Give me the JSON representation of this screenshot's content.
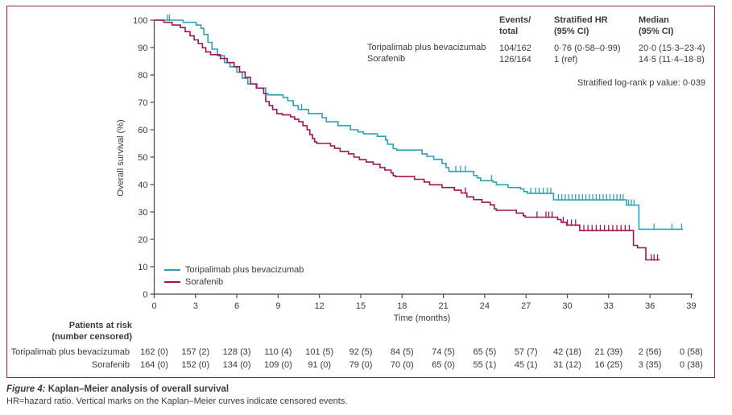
{
  "colors": {
    "teal": "#2aa2b6",
    "maroon": "#a31352",
    "border": "#a21a52",
    "text": "#3a3a40",
    "axis": "#47474b"
  },
  "stats_table": {
    "headers": [
      {
        "line1": "Events/",
        "line2": "total"
      },
      {
        "line1": "Stratified HR",
        "line2": "(95% CI)"
      },
      {
        "line1": "Median",
        "line2": "(95% CI)"
      }
    ],
    "rows": [
      {
        "name": "Toripalimab plus bevacizumab",
        "events_total": "104/162",
        "hr": "0·76 (0·58–0·99)",
        "median": "20·0 (15·3–23·4)"
      },
      {
        "name": "Sorafenib",
        "events_total": "126/164",
        "hr": "1 (ref)",
        "median": "14·5 (11·4–18·8)"
      }
    ],
    "p_value_note": "Stratified log-rank p value: 0·039"
  },
  "chart_data": {
    "type": "line",
    "subtype": "kaplan-meier-step",
    "title": "",
    "xlabel": "Time (months)",
    "ylabel": "Overall survival (%)",
    "xlim": [
      0,
      39
    ],
    "ylim": [
      0,
      100
    ],
    "xticks": [
      0,
      3,
      6,
      9,
      12,
      15,
      18,
      21,
      24,
      27,
      30,
      33,
      36,
      39
    ],
    "yticks": [
      0,
      10,
      20,
      30,
      40,
      50,
      60,
      70,
      80,
      90,
      100
    ],
    "grid": false,
    "legend_position": "inside-lower-left",
    "series": [
      {
        "name": "Toripalimab plus bevacizumab",
        "color_key": "teal",
        "steps": [
          [
            0,
            100
          ],
          [
            2.1,
            99.2
          ],
          [
            3.05,
            98.2
          ],
          [
            3.4,
            97.0
          ],
          [
            3.6,
            94.8
          ],
          [
            3.9,
            91.9
          ],
          [
            4.2,
            89.4
          ],
          [
            4.6,
            87.0
          ],
          [
            5.1,
            84.5
          ],
          [
            5.5,
            83.0
          ],
          [
            6.0,
            81.0
          ],
          [
            6.4,
            78.8
          ],
          [
            6.8,
            76.7
          ],
          [
            7.4,
            75.2
          ],
          [
            8.1,
            73.2
          ],
          [
            8.25,
            72.7
          ],
          [
            9.35,
            71.8
          ],
          [
            9.7,
            70.6
          ],
          [
            10.1,
            68.8
          ],
          [
            10.45,
            67.4
          ],
          [
            11.2,
            65.9
          ],
          [
            12.2,
            64.4
          ],
          [
            12.5,
            62.9
          ],
          [
            13.35,
            61.5
          ],
          [
            14.25,
            60.0
          ],
          [
            14.8,
            59.2
          ],
          [
            15.2,
            58.5
          ],
          [
            16.2,
            57.6
          ],
          [
            16.8,
            56.2
          ],
          [
            16.95,
            54.7
          ],
          [
            17.35,
            53.1
          ],
          [
            17.6,
            52.6
          ],
          [
            19.45,
            51.2
          ],
          [
            19.8,
            50.3
          ],
          [
            20.3,
            49.2
          ],
          [
            20.9,
            47.7
          ],
          [
            21.2,
            46.2
          ],
          [
            21.4,
            44.8
          ],
          [
            23.2,
            43.3
          ],
          [
            23.45,
            42.4
          ],
          [
            23.7,
            41.4
          ],
          [
            24.6,
            40.9
          ],
          [
            24.85,
            39.9
          ],
          [
            25.7,
            38.9
          ],
          [
            26.6,
            38.4
          ],
          [
            26.85,
            37.4
          ],
          [
            27.1,
            36.8
          ],
          [
            29.0,
            34.4
          ],
          [
            34.3,
            32.5
          ],
          [
            35.2,
            23.7
          ],
          [
            38.4,
            23.7
          ]
        ],
        "censor_months": [
          0.96,
          1.1,
          10.7,
          21.9,
          22.25,
          22.6,
          24.5,
          27.35,
          27.7,
          27.95,
          28.25,
          28.55,
          28.8,
          29.35,
          29.6,
          29.85,
          30.1,
          30.35,
          30.6,
          30.85,
          31.1,
          31.35,
          31.6,
          31.85,
          32.1,
          32.35,
          32.6,
          32.85,
          33.1,
          33.35,
          33.6,
          33.85,
          34.05,
          34.45,
          34.65,
          34.85,
          36.3,
          37.6,
          38.3
        ]
      },
      {
        "name": "Sorafenib",
        "color_key": "maroon",
        "steps": [
          [
            0,
            100
          ],
          [
            0.7,
            99.2
          ],
          [
            1.3,
            98.2
          ],
          [
            1.9,
            97.3
          ],
          [
            2.25,
            95.8
          ],
          [
            2.6,
            94.3
          ],
          [
            2.9,
            92.8
          ],
          [
            3.2,
            91.4
          ],
          [
            3.5,
            89.9
          ],
          [
            3.75,
            88.4
          ],
          [
            4.1,
            87.4
          ],
          [
            4.8,
            86.0
          ],
          [
            5.3,
            84.5
          ],
          [
            5.8,
            83.0
          ],
          [
            6.2,
            81.1
          ],
          [
            6.6,
            79.1
          ],
          [
            7.0,
            76.7
          ],
          [
            7.45,
            75.2
          ],
          [
            7.95,
            73.2
          ],
          [
            8.1,
            70.3
          ],
          [
            8.35,
            68.8
          ],
          [
            8.6,
            67.4
          ],
          [
            8.9,
            65.9
          ],
          [
            9.3,
            65.4
          ],
          [
            9.9,
            64.7
          ],
          [
            10.2,
            63.8
          ],
          [
            10.5,
            62.9
          ],
          [
            10.8,
            61.5
          ],
          [
            11.1,
            60.0
          ],
          [
            11.3,
            58.2
          ],
          [
            11.5,
            56.8
          ],
          [
            11.65,
            55.6
          ],
          [
            11.8,
            55.0
          ],
          [
            12.8,
            54.1
          ],
          [
            13.1,
            53.2
          ],
          [
            13.5,
            52.1
          ],
          [
            14.1,
            51.2
          ],
          [
            14.5,
            50.0
          ],
          [
            14.9,
            49.1
          ],
          [
            15.4,
            48.2
          ],
          [
            15.9,
            47.4
          ],
          [
            16.4,
            46.2
          ],
          [
            16.75,
            45.3
          ],
          [
            17.2,
            44.3
          ],
          [
            17.35,
            43.3
          ],
          [
            17.5,
            42.9
          ],
          [
            18.9,
            41.9
          ],
          [
            19.6,
            40.9
          ],
          [
            20.0,
            39.9
          ],
          [
            20.9,
            38.9
          ],
          [
            21.8,
            37.9
          ],
          [
            22.3,
            36.9
          ],
          [
            22.7,
            35.5
          ],
          [
            23.2,
            34.5
          ],
          [
            23.8,
            33.5
          ],
          [
            24.4,
            32.6
          ],
          [
            24.7,
            31.1
          ],
          [
            24.85,
            30.6
          ],
          [
            26.3,
            29.6
          ],
          [
            26.8,
            28.6
          ],
          [
            26.95,
            28.1
          ],
          [
            29.3,
            27.2
          ],
          [
            29.55,
            26.2
          ],
          [
            29.95,
            25.2
          ],
          [
            30.9,
            23.2
          ],
          [
            34.8,
            17.8
          ],
          [
            35.1,
            16.9
          ],
          [
            35.7,
            12.5
          ],
          [
            36.7,
            12.5
          ]
        ],
        "censor_months": [
          22.6,
          27.8,
          28.45,
          28.65,
          28.9,
          29.7,
          30.0,
          30.3,
          30.6,
          31.2,
          31.5,
          31.8,
          32.1,
          32.4,
          32.7,
          33.0,
          33.3,
          33.6,
          33.9,
          34.2,
          34.5,
          36.1,
          36.3,
          36.55
        ]
      }
    ]
  },
  "risk_table": {
    "title_line1": "Patients at risk",
    "title_line2": "(number censored)",
    "time_points": [
      0,
      3,
      6,
      9,
      12,
      15,
      18,
      21,
      24,
      27,
      30,
      33,
      36,
      39
    ],
    "rows": [
      {
        "name": "Toripalimab plus bevacizumab",
        "values": [
          "162 (0)",
          "157 (2)",
          "128 (3)",
          "110 (4)",
          "101 (5)",
          "92 (5)",
          "84 (5)",
          "74 (5)",
          "65 (5)",
          "57 (7)",
          "42 (18)",
          "21 (39)",
          "2 (56)",
          "0 (58)"
        ]
      },
      {
        "name": "Sorafenib",
        "values": [
          "164 (0)",
          "152 (0)",
          "134 (0)",
          "109 (0)",
          "91 (0)",
          "79 (0)",
          "70 (0)",
          "65 (0)",
          "55 (1)",
          "45 (1)",
          "31 (12)",
          "16 (25)",
          "3 (35)",
          "0 (38)"
        ]
      }
    ]
  },
  "caption": {
    "label": "Figure 4:",
    "title": " Kaplan–Meier analysis of overall survival",
    "note": "HR=hazard ratio. Vertical marks on the Kaplan–Meier curves indicate censored events."
  }
}
